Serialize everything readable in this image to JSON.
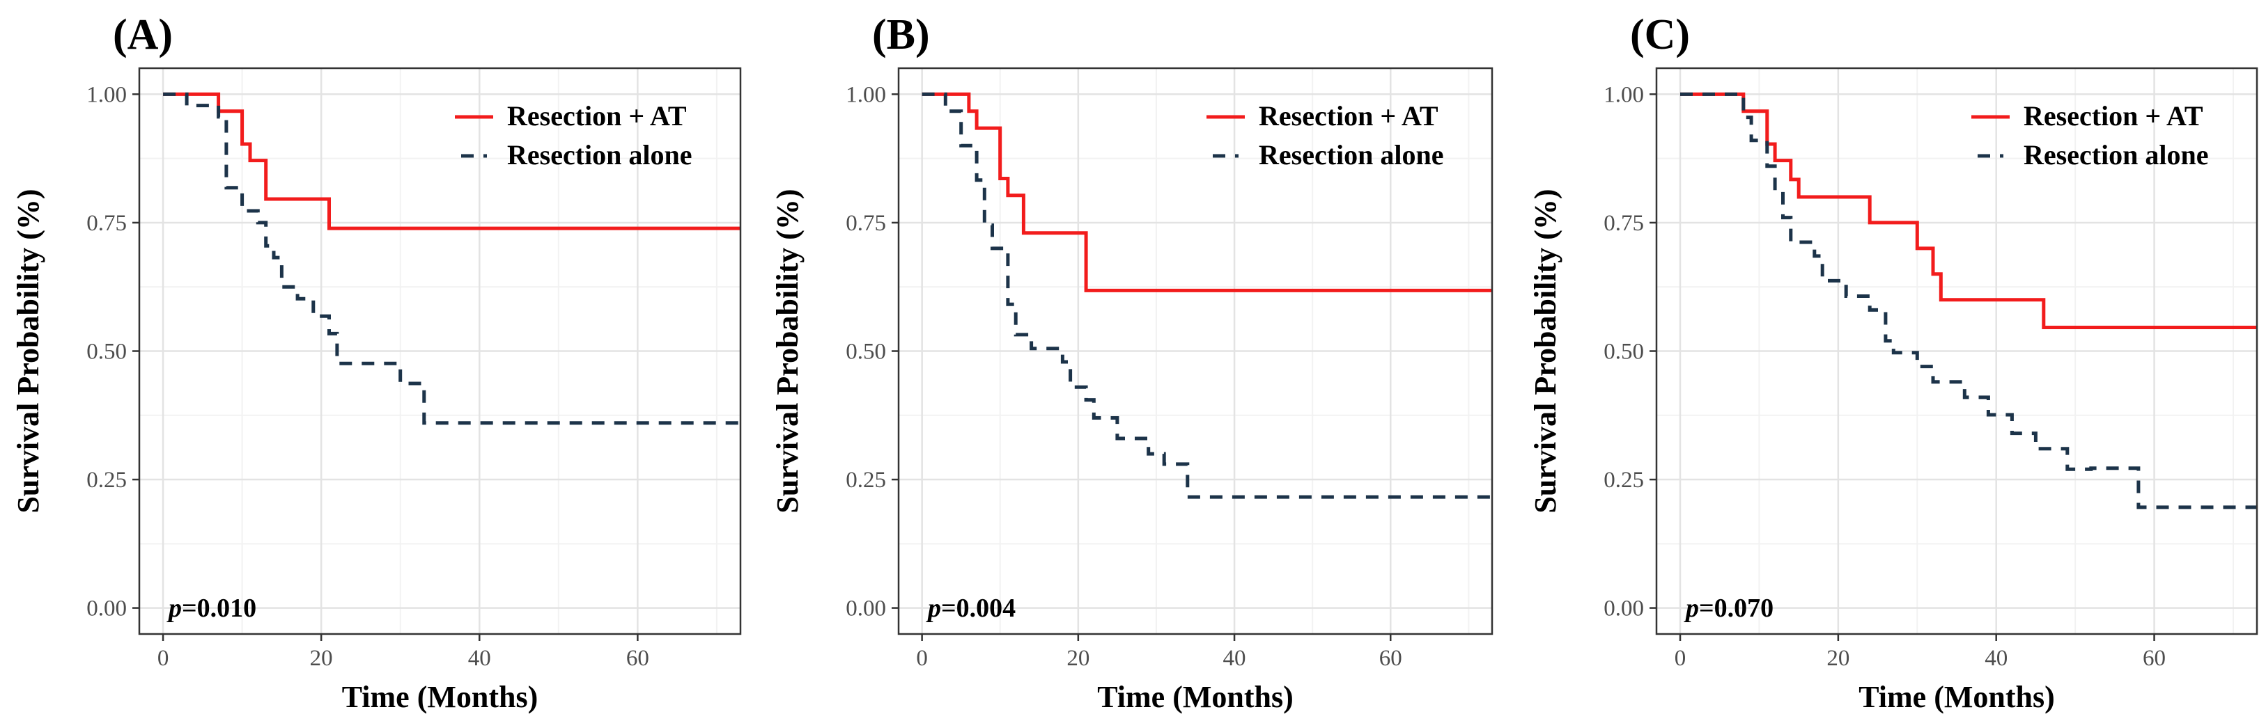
{
  "chart_data": [
    {
      "type": "line",
      "panel_label": "(A)",
      "xlabel": "Time (Months)",
      "ylabel": "Survival Probability (%)",
      "xlim": [
        -3,
        73
      ],
      "ylim": [
        0,
        1
      ],
      "x_ticks": [
        0,
        20,
        40,
        60
      ],
      "y_ticks": [
        0,
        0.25,
        0.5,
        0.75,
        1.0
      ],
      "y_tick_labels": [
        "0.00",
        "0.25",
        "0.50",
        "0.75",
        "1.00"
      ],
      "grid": true,
      "legend_position": "top-right",
      "annotation": {
        "p_label": "p",
        "value": "=0.010"
      },
      "series": [
        {
          "name": "Resection + AT",
          "style": "solid",
          "color": "#f21c1c",
          "points": [
            [
              0,
              1.0
            ],
            [
              7,
              0.967
            ],
            [
              10,
              0.903
            ],
            [
              11,
              0.871
            ],
            [
              13,
              0.796
            ],
            [
              21,
              0.739
            ],
            [
              73,
              0.739
            ]
          ]
        },
        {
          "name": "Resection alone",
          "style": "dashed",
          "color": "#1c3349",
          "points": [
            [
              0,
              1.0
            ],
            [
              3,
              0.978
            ],
            [
              7,
              0.956
            ],
            [
              8,
              0.818
            ],
            [
              10,
              0.773
            ],
            [
              12,
              0.75
            ],
            [
              13,
              0.705
            ],
            [
              14,
              0.682
            ],
            [
              15,
              0.625
            ],
            [
              17,
              0.602
            ],
            [
              19,
              0.568
            ],
            [
              21,
              0.534
            ],
            [
              22,
              0.476
            ],
            [
              30,
              0.437
            ],
            [
              33,
              0.36
            ],
            [
              73,
              0.36
            ]
          ]
        }
      ]
    },
    {
      "type": "line",
      "panel_label": "(B)",
      "xlabel": "Time (Months)",
      "ylabel": "Survival Probability (%)",
      "xlim": [
        -3,
        73
      ],
      "ylim": [
        0,
        1
      ],
      "x_ticks": [
        0,
        20,
        40,
        60
      ],
      "y_ticks": [
        0,
        0.25,
        0.5,
        0.75,
        1.0
      ],
      "y_tick_labels": [
        "0.00",
        "0.25",
        "0.50",
        "0.75",
        "1.00"
      ],
      "grid": true,
      "legend_position": "top-right",
      "annotation": {
        "p_label": "p",
        "value": "=0.004"
      },
      "series": [
        {
          "name": "Resection + AT",
          "style": "solid",
          "color": "#f21c1c",
          "points": [
            [
              0,
              1.0
            ],
            [
              6,
              0.967
            ],
            [
              7,
              0.934
            ],
            [
              10,
              0.836
            ],
            [
              11,
              0.803
            ],
            [
              13,
              0.73
            ],
            [
              21,
              0.618
            ],
            [
              73,
              0.618
            ]
          ]
        },
        {
          "name": "Resection alone",
          "style": "dashed",
          "color": "#1c3349",
          "points": [
            [
              0,
              1.0
            ],
            [
              3,
              0.967
            ],
            [
              5,
              0.9
            ],
            [
              7,
              0.833
            ],
            [
              8,
              0.745
            ],
            [
              9,
              0.7
            ],
            [
              11,
              0.591
            ],
            [
              12,
              0.532
            ],
            [
              14,
              0.505
            ],
            [
              18,
              0.479
            ],
            [
              19,
              0.43
            ],
            [
              21,
              0.405
            ],
            [
              22,
              0.37
            ],
            [
              25,
              0.33
            ],
            [
              29,
              0.3
            ],
            [
              31,
              0.28
            ],
            [
              34,
              0.216
            ],
            [
              73,
              0.216
            ]
          ]
        }
      ]
    },
    {
      "type": "line",
      "panel_label": "(C)",
      "xlabel": "Time (Months)",
      "ylabel": "Survival Probability (%)",
      "xlim": [
        -3,
        73
      ],
      "ylim": [
        0,
        1
      ],
      "x_ticks": [
        0,
        20,
        40,
        60
      ],
      "y_ticks": [
        0,
        0.25,
        0.5,
        0.75,
        1.0
      ],
      "y_tick_labels": [
        "0.00",
        "0.25",
        "0.50",
        "0.75",
        "1.00"
      ],
      "grid": true,
      "legend_position": "top-right",
      "annotation": {
        "p_label": "p",
        "value": "=0.070"
      },
      "series": [
        {
          "name": "Resection + AT",
          "style": "solid",
          "color": "#f21c1c",
          "points": [
            [
              0,
              1.0
            ],
            [
              8,
              0.967
            ],
            [
              11,
              0.903
            ],
            [
              12,
              0.871
            ],
            [
              14,
              0.834
            ],
            [
              15,
              0.8
            ],
            [
              24,
              0.75
            ],
            [
              30,
              0.7
            ],
            [
              32,
              0.65
            ],
            [
              33,
              0.6
            ],
            [
              46,
              0.546
            ],
            [
              73,
              0.546
            ]
          ]
        },
        {
          "name": "Resection alone",
          "style": "dashed",
          "color": "#1c3349",
          "points": [
            [
              0,
              1.0
            ],
            [
              8,
              0.955
            ],
            [
              9,
              0.91
            ],
            [
              11,
              0.86
            ],
            [
              12,
              0.81
            ],
            [
              13,
              0.76
            ],
            [
              14,
              0.712
            ],
            [
              17,
              0.685
            ],
            [
              18,
              0.637
            ],
            [
              21,
              0.607
            ],
            [
              24,
              0.58
            ],
            [
              26,
              0.52
            ],
            [
              27,
              0.497
            ],
            [
              30,
              0.47
            ],
            [
              32,
              0.44
            ],
            [
              36,
              0.41
            ],
            [
              39,
              0.376
            ],
            [
              42,
              0.34
            ],
            [
              45,
              0.31
            ],
            [
              49,
              0.27
            ],
            [
              52,
              0.272
            ],
            [
              58,
              0.196
            ],
            [
              73,
              0.196
            ]
          ]
        }
      ]
    }
  ]
}
